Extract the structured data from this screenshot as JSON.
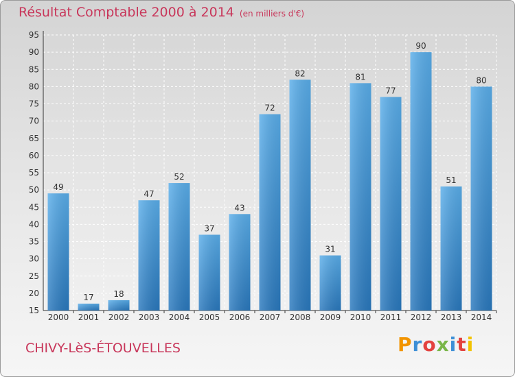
{
  "header": {
    "title": "Résultat Comptable 2000 à 2014",
    "subtitle": "(en milliers d'€)"
  },
  "footer": {
    "place": "CHIVY-LèS-ÉTOUVELLES",
    "logo_letters": [
      "P",
      "r",
      "o",
      "x",
      "i",
      "t",
      "i"
    ],
    "logo_colors": [
      "#f29400",
      "#3d8fd6",
      "#e3423f",
      "#7ab648",
      "#3d8fd6",
      "#e3423f",
      "#f2c200"
    ]
  },
  "chart_data": {
    "type": "bar",
    "categories": [
      "2000",
      "2001",
      "2002",
      "2003",
      "2004",
      "2005",
      "2006",
      "2007",
      "2008",
      "2009",
      "2010",
      "2011",
      "2012",
      "2013",
      "2014"
    ],
    "values": [
      49,
      17,
      18,
      47,
      52,
      37,
      43,
      72,
      82,
      31,
      81,
      77,
      90,
      51,
      80
    ],
    "ylim": [
      15,
      95
    ],
    "yticks": [
      15,
      20,
      25,
      30,
      35,
      40,
      45,
      50,
      55,
      60,
      65,
      70,
      75,
      80,
      85,
      90,
      95
    ],
    "grid": true,
    "bar_color": "#3f97dd"
  }
}
